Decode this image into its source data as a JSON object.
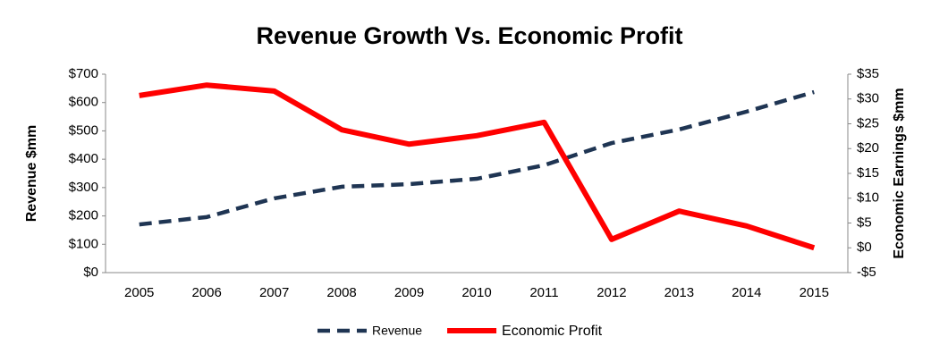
{
  "chart_data": {
    "type": "line",
    "title": "Revenue Growth Vs. Economic Profit",
    "ylabel": "Revenue $mm",
    "y2label": "Economic Earnings $mm",
    "categories": [
      "2005",
      "2006",
      "2007",
      "2008",
      "2009",
      "2010",
      "2011",
      "2012",
      "2013",
      "2014",
      "2015"
    ],
    "series": [
      {
        "name": "Revenue",
        "color": "#1f3553",
        "line_style": "dashed",
        "axis": "y",
        "values": [
          170,
          196,
          262,
          303,
          312,
          331,
          379,
          457,
          505,
          568,
          637
        ]
      },
      {
        "name": "Economic Profit",
        "color": "#ff0000",
        "line_style": "solid",
        "axis": "y2",
        "values": [
          30.7,
          32.8,
          31.6,
          23.8,
          20.9,
          22.6,
          25.3,
          1.7,
          7.4,
          4.4,
          0.0
        ]
      }
    ],
    "ylim": [
      0,
      700
    ],
    "yticks": [
      {
        "value": 0,
        "label": "$0"
      },
      {
        "value": 100,
        "label": "$100"
      },
      {
        "value": 200,
        "label": "$200"
      },
      {
        "value": 300,
        "label": "$300"
      },
      {
        "value": 400,
        "label": "$400"
      },
      {
        "value": 500,
        "label": "$500"
      },
      {
        "value": 600,
        "label": "$600"
      },
      {
        "value": 700,
        "label": "$700"
      }
    ],
    "y2lim": [
      -5,
      35
    ],
    "y2ticks": [
      {
        "value": -5,
        "label": "-$5"
      },
      {
        "value": 0,
        "label": "$0"
      },
      {
        "value": 5,
        "label": "$5"
      },
      {
        "value": 10,
        "label": "$10"
      },
      {
        "value": 15,
        "label": "$15"
      },
      {
        "value": 20,
        "label": "$20"
      },
      {
        "value": 25,
        "label": "$25"
      },
      {
        "value": 30,
        "label": "$30"
      },
      {
        "value": 35,
        "label": "$35"
      }
    ],
    "grid": false,
    "legend": "bottom"
  }
}
